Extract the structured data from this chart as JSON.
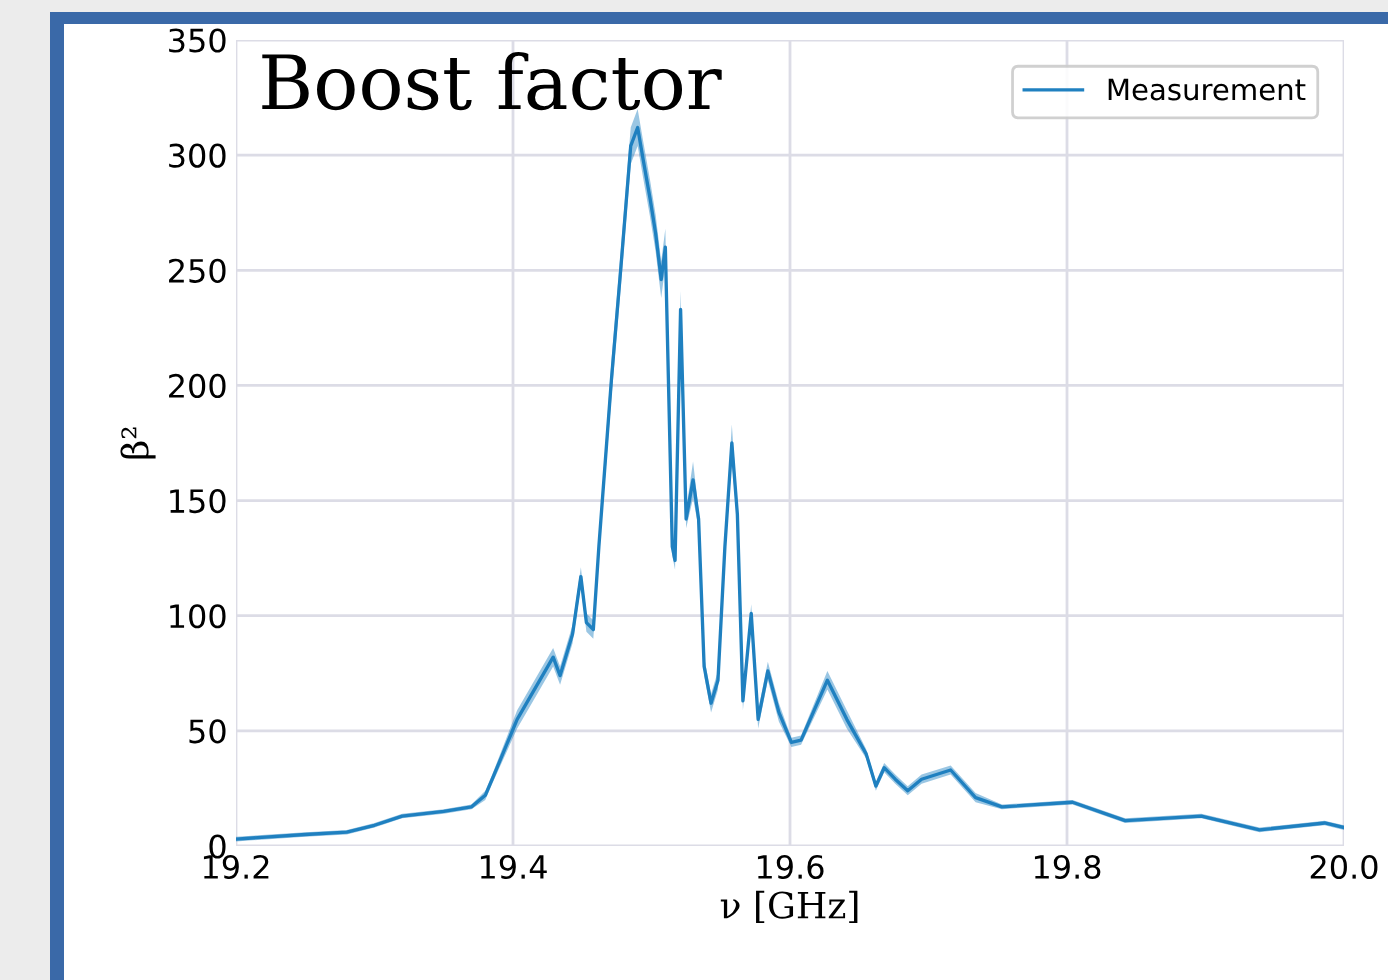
{
  "chart_data": {
    "type": "line",
    "title": "Boost factor",
    "xlabel": "ν [GHz]",
    "ylabel": "β²",
    "xlim": [
      19.2,
      20.0
    ],
    "xticks": [
      19.2,
      19.4,
      19.6,
      19.8,
      {
        "value": 20.0,
        "label": "20.0"
      }
    ],
    "ylim": [
      0,
      350
    ],
    "yticks": [
      0,
      50,
      100,
      150,
      200,
      250,
      300,
      350
    ],
    "grid": true,
    "legend": "top right",
    "series": [
      {
        "name": "Measurement",
        "color": "#1f80c0",
        "x": [
          19.2,
          19.25,
          19.28,
          19.3,
          19.32,
          19.35,
          19.37,
          19.38,
          19.385,
          19.403,
          19.429,
          19.434,
          19.443,
          19.449,
          19.453,
          19.458,
          19.462,
          19.471,
          19.478,
          19.485,
          19.49,
          19.494,
          19.499,
          19.503,
          19.507,
          19.51,
          19.515,
          19.517,
          19.521,
          19.525,
          19.53,
          19.534,
          19.538,
          19.543,
          19.548,
          19.553,
          19.558,
          19.562,
          19.566,
          19.572,
          19.577,
          19.584,
          19.592,
          19.601,
          19.608,
          19.627,
          19.641,
          19.655,
          19.662,
          19.668,
          19.676,
          19.685,
          19.695,
          19.716,
          19.734,
          19.753,
          19.804,
          19.842,
          19.897,
          19.939,
          19.986,
          20.0
        ],
        "values": [
          3,
          5,
          6,
          9,
          13,
          15,
          17,
          22,
          29,
          55,
          82,
          74,
          92,
          117,
          97,
          94,
          130,
          202,
          252,
          304,
          312,
          298,
          281,
          266,
          246,
          260,
          130,
          124,
          233,
          142,
          159,
          142,
          78,
          62,
          72,
          130,
          175,
          144,
          63,
          101,
          55,
          76,
          58,
          45,
          46,
          72,
          55,
          40,
          26,
          34,
          29,
          24,
          29,
          33,
          21,
          17,
          19,
          11,
          13,
          7,
          10,
          8
        ],
        "lower": [
          2,
          4,
          5,
          8,
          12,
          14,
          16,
          20,
          27,
          51,
          78,
          70,
          88,
          113,
          93,
          90,
          126,
          194,
          244,
          296,
          304,
          290,
          273,
          258,
          238,
          252,
          126,
          120,
          225,
          138,
          151,
          138,
          74,
          58,
          68,
          126,
          167,
          140,
          59,
          97,
          51,
          72,
          54,
          43,
          44,
          68,
          51,
          38,
          24,
          32,
          27,
          22,
          27,
          31,
          19,
          16,
          18,
          10,
          12,
          6,
          9,
          7
        ],
        "upper": [
          4,
          6,
          7,
          10,
          14,
          16,
          18,
          24,
          31,
          59,
          86,
          78,
          96,
          121,
          101,
          98,
          134,
          210,
          260,
          312,
          320,
          306,
          289,
          274,
          254,
          268,
          134,
          128,
          241,
          146,
          167,
          146,
          82,
          66,
          76,
          134,
          183,
          148,
          67,
          105,
          59,
          80,
          62,
          47,
          48,
          76,
          59,
          42,
          28,
          36,
          31,
          26,
          31,
          35,
          23,
          18,
          20,
          12,
          14,
          8,
          11,
          9
        ]
      }
    ]
  }
}
